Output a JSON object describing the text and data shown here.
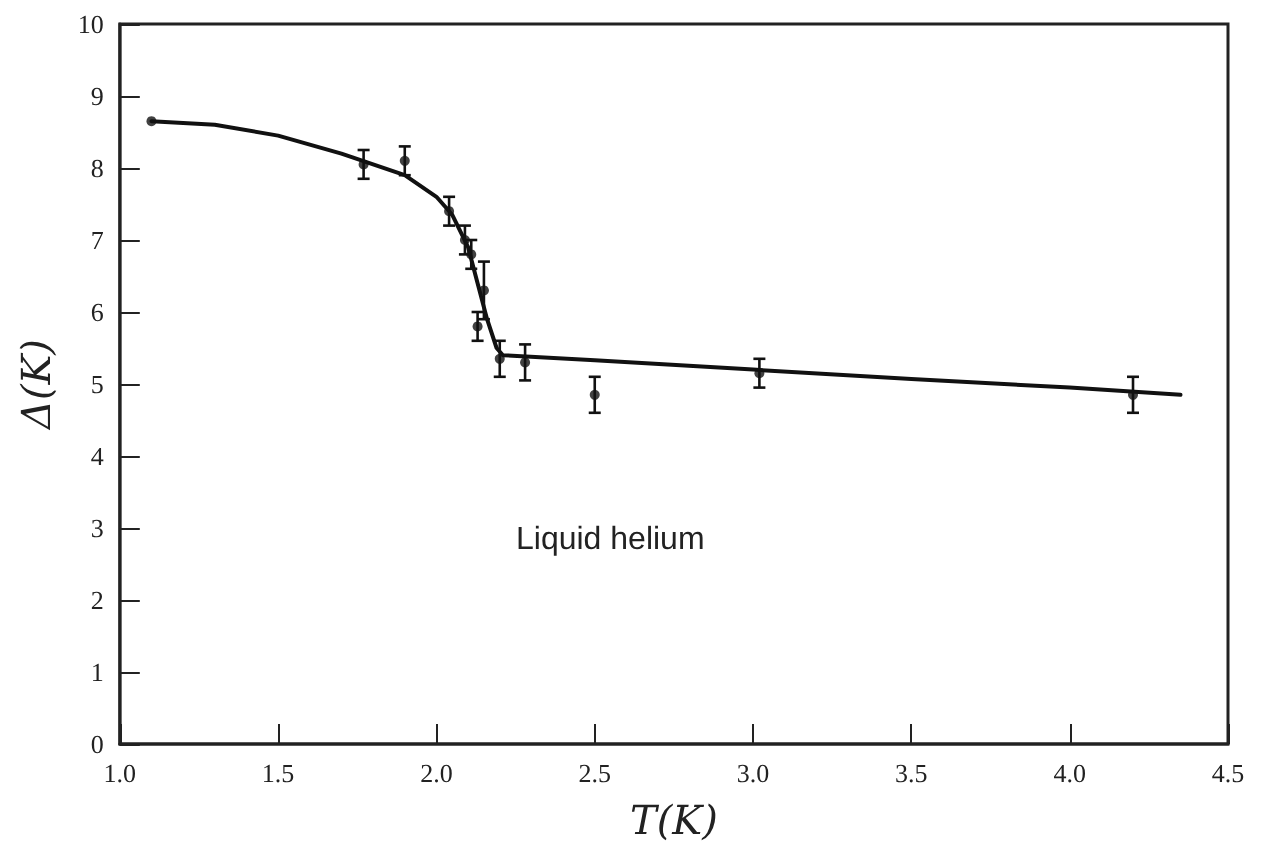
{
  "chart_data": {
    "type": "scatter",
    "xlabel": "T(K)",
    "ylabel": "Δ(K)",
    "annotations": [
      "Liquid helium"
    ],
    "xlim": [
      1.0,
      4.5
    ],
    "xticks": [
      {
        "value": 1.0,
        "label": "1.0"
      },
      1.5,
      {
        "value": 2.0,
        "label": "2.0"
      },
      2.5,
      {
        "value": 3.0,
        "label": "3.0"
      },
      3.5,
      {
        "value": 4.0,
        "label": "4.0"
      },
      4.5
    ],
    "ylim": [
      0,
      10
    ],
    "yticks": [
      0,
      1,
      2,
      3,
      4,
      5,
      6,
      7,
      8,
      9,
      10
    ],
    "grid": false,
    "marker": "circle",
    "series": [
      {
        "color": "#111111",
        "x": [
          1.1,
          1.77,
          1.9,
          2.04,
          2.09,
          2.11,
          2.13,
          2.15,
          2.2,
          2.28,
          2.5,
          3.02,
          4.2
        ],
        "values": [
          8.65,
          8.05,
          8.1,
          7.4,
          7.0,
          6.8,
          5.8,
          6.3,
          5.35,
          5.3,
          4.85,
          5.15,
          4.85
        ],
        "errors": [
          null,
          0.2,
          0.2,
          0.2,
          0.2,
          0.2,
          0.2,
          0.4,
          0.25,
          0.25,
          0.25,
          0.2,
          0.25
        ]
      },
      {
        "type": "line",
        "color": "#111111",
        "line_style": "solid",
        "marker": "none",
        "x": [
          1.1,
          1.3,
          1.5,
          1.7,
          1.9,
          2.0,
          2.05,
          2.1,
          2.13,
          2.16,
          2.19,
          2.21,
          2.5,
          3.0,
          3.5,
          4.0,
          4.35
        ],
        "values": [
          8.65,
          8.6,
          8.45,
          8.2,
          7.9,
          7.6,
          7.35,
          6.9,
          6.4,
          5.9,
          5.5,
          5.4,
          5.33,
          5.2,
          5.07,
          4.95,
          4.85
        ]
      }
    ]
  }
}
